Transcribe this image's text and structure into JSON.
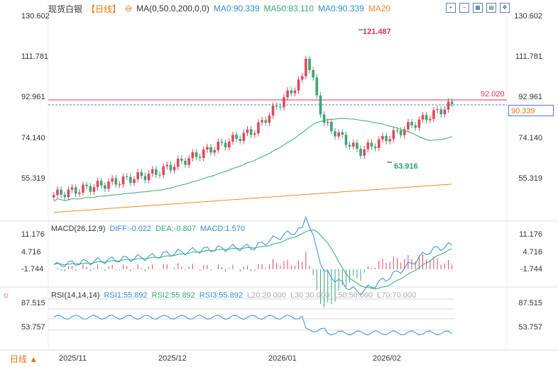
{
  "header": {
    "instrument": "现货白银",
    "period": "【日线】",
    "ma_label": "MA(0,50,0,200,0,0)",
    "ma_values": [
      "MA0:90.339",
      "MA50:83.110",
      "MA0:90.339",
      "MA20"
    ]
  },
  "toolbar": {
    "icons": [
      "grid-plus-icon",
      "grid-minus-icon",
      "grid-expand-icon",
      "grid-layout-icon",
      "grid-move-icon"
    ]
  },
  "price_axis": {
    "labels": [
      "130.602",
      "111.781",
      "92.961",
      "74.140",
      "55.319"
    ],
    "current_tag": "90.339",
    "line_level_label": "92.020",
    "high_label": "121.487",
    "low_label": "63.916"
  },
  "macd": {
    "title": "MACD(26,12,9)",
    "diff": "DIFF:-0.022",
    "dea": "DEA:-0.807",
    "macd": "MACD:1.570",
    "labels": [
      "11.176",
      "4.716",
      "-1.744"
    ]
  },
  "rsi": {
    "title": "RSI(14,14,14)",
    "rsi1": "RSI1:55.892",
    "rsi2": "RSI2:55.892",
    "rsi3": "RSI3:55.892",
    "l20": "L20:20.000",
    "l30": "L30:30.000",
    "l50": "L50:50.000",
    "l70": "L70:70.000",
    "labels": [
      "87.515",
      "53.757"
    ]
  },
  "time_axis": {
    "labels": [
      "2025/11",
      "2025/12",
      "2026/01",
      "2026/02"
    ]
  },
  "bottom": {
    "period_button": "日线 ▲"
  },
  "colors": {
    "up": "#e0475b",
    "down": "#3aa675",
    "ma50": "#2fae6b",
    "ma200": "#f08a2c",
    "diff": "#2f8fd6",
    "dea": "#2fae6b",
    "resistance": "#d9334a"
  }
}
